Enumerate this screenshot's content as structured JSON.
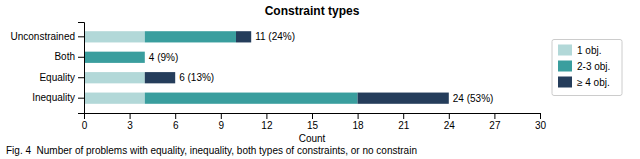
{
  "chart_data": {
    "type": "bar",
    "orientation": "horizontal",
    "stacked": true,
    "title": "Constraint types",
    "xlabel": "Count",
    "caption": "Fig. 4  Number of problems with equality, inequality, both types of constraints, or no constrain",
    "categories": [
      "Unconstrained",
      "Both",
      "Equality",
      "Inequality"
    ],
    "series": [
      {
        "name": "1 obj.",
        "color": "#b2d8d8",
        "values": [
          4,
          0,
          4,
          4
        ]
      },
      {
        "name": "2-3 obj.",
        "color": "#3a9e9e",
        "values": [
          6,
          4,
          0,
          14
        ]
      },
      {
        "name": "≥ 4 obj.",
        "color": "#253d5b",
        "values": [
          1,
          0,
          2,
          6
        ]
      }
    ],
    "totals": [
      {
        "value": 11,
        "label": "11 (24%)"
      },
      {
        "value": 4,
        "label": "4 (9%)"
      },
      {
        "value": 6,
        "label": "6 (13%)"
      },
      {
        "value": 24,
        "label": "24 (53%)"
      }
    ],
    "xlim": [
      0,
      30
    ],
    "xticks": [
      0,
      3,
      6,
      9,
      12,
      15,
      18,
      21,
      24,
      27,
      30
    ],
    "grid": false,
    "legend": "right"
  }
}
